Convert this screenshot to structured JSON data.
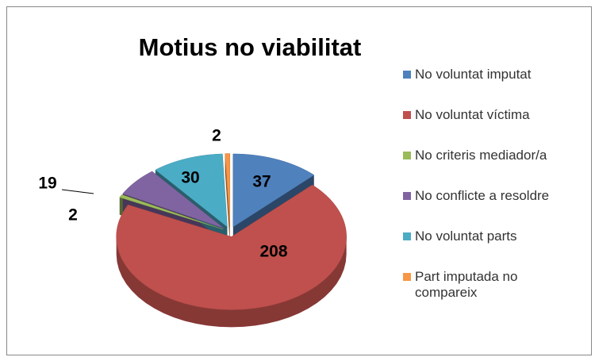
{
  "chart_data": {
    "type": "pie",
    "title": "Motius no viabilitat",
    "categories": [
      "No voluntat imputat",
      "No voluntat víctima",
      "No criteris mediador/a",
      "No conflicte a resoldre",
      "No voluntat parts",
      "Part imputada no compareix"
    ],
    "values": [
      37,
      208,
      2,
      19,
      30,
      2
    ],
    "colors": [
      "#4f81bd",
      "#c0504d",
      "#9bbb59",
      "#8064a2",
      "#4bacc6",
      "#f79646"
    ],
    "legend": "right"
  }
}
